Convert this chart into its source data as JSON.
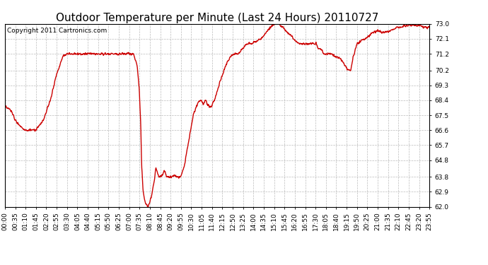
{
  "title": "Outdoor Temperature per Minute (Last 24 Hours) 20110727",
  "copyright_text": "Copyright 2011 Cartronics.com",
  "line_color": "#cc0000",
  "bg_color": "#ffffff",
  "plot_bg_color": "#ffffff",
  "grid_color": "#bbbbbb",
  "ylim": [
    62.0,
    73.0
  ],
  "yticks": [
    62.0,
    62.9,
    63.8,
    64.8,
    65.7,
    66.6,
    67.5,
    68.4,
    69.3,
    70.2,
    71.2,
    72.1,
    73.0
  ],
  "x_labels": [
    "00:00",
    "00:35",
    "01:10",
    "01:45",
    "02:20",
    "02:55",
    "03:30",
    "04:05",
    "04:40",
    "05:15",
    "05:50",
    "06:25",
    "07:00",
    "07:35",
    "08:10",
    "08:45",
    "09:20",
    "09:55",
    "10:30",
    "11:05",
    "11:40",
    "12:15",
    "12:50",
    "13:25",
    "14:00",
    "14:35",
    "15:10",
    "15:45",
    "16:20",
    "16:55",
    "17:30",
    "18:05",
    "18:40",
    "19:15",
    "19:50",
    "20:25",
    "21:00",
    "21:35",
    "22:10",
    "22:45",
    "23:20",
    "23:55"
  ],
  "title_fontsize": 11,
  "copyright_fontsize": 6.5,
  "tick_fontsize": 6.5,
  "line_width": 1.0,
  "keypoints": [
    [
      0,
      68.0
    ],
    [
      20,
      67.8
    ],
    [
      35,
      67.2
    ],
    [
      55,
      66.8
    ],
    [
      70,
      66.6
    ],
    [
      85,
      66.6
    ],
    [
      105,
      66.6
    ],
    [
      130,
      67.2
    ],
    [
      155,
      68.5
    ],
    [
      175,
      70.0
    ],
    [
      195,
      71.0
    ],
    [
      210,
      71.2
    ],
    [
      230,
      71.2
    ],
    [
      260,
      71.2
    ],
    [
      300,
      71.2
    ],
    [
      340,
      71.2
    ],
    [
      380,
      71.2
    ],
    [
      410,
      71.2
    ],
    [
      435,
      71.2
    ],
    [
      448,
      70.5
    ],
    [
      455,
      69.0
    ],
    [
      460,
      67.0
    ],
    [
      463,
      64.5
    ],
    [
      468,
      63.0
    ],
    [
      475,
      62.2
    ],
    [
      485,
      62.0
    ],
    [
      495,
      62.5
    ],
    [
      505,
      63.5
    ],
    [
      512,
      64.4
    ],
    [
      518,
      63.9
    ],
    [
      525,
      63.8
    ],
    [
      533,
      63.9
    ],
    [
      540,
      64.2
    ],
    [
      548,
      63.8
    ],
    [
      558,
      63.8
    ],
    [
      565,
      63.8
    ],
    [
      575,
      63.9
    ],
    [
      585,
      63.8
    ],
    [
      595,
      63.8
    ],
    [
      608,
      64.5
    ],
    [
      618,
      65.5
    ],
    [
      628,
      66.5
    ],
    [
      638,
      67.5
    ],
    [
      648,
      68.0
    ],
    [
      658,
      68.4
    ],
    [
      665,
      68.4
    ],
    [
      673,
      68.2
    ],
    [
      680,
      68.4
    ],
    [
      688,
      68.1
    ],
    [
      698,
      68.0
    ],
    [
      710,
      68.4
    ],
    [
      728,
      69.5
    ],
    [
      748,
      70.5
    ],
    [
      763,
      71.0
    ],
    [
      775,
      71.2
    ],
    [
      790,
      71.2
    ],
    [
      805,
      71.5
    ],
    [
      820,
      71.8
    ],
    [
      838,
      71.8
    ],
    [
      852,
      72.0
    ],
    [
      868,
      72.1
    ],
    [
      885,
      72.5
    ],
    [
      900,
      72.8
    ],
    [
      912,
      73.0
    ],
    [
      920,
      73.2
    ],
    [
      928,
      73.0
    ],
    [
      940,
      72.8
    ],
    [
      955,
      72.5
    ],
    [
      968,
      72.3
    ],
    [
      978,
      72.1
    ],
    [
      988,
      71.9
    ],
    [
      1000,
      71.8
    ],
    [
      1012,
      71.8
    ],
    [
      1020,
      71.8
    ],
    [
      1030,
      71.8
    ],
    [
      1042,
      71.8
    ],
    [
      1055,
      71.8
    ],
    [
      1062,
      71.5
    ],
    [
      1072,
      71.5
    ],
    [
      1080,
      71.2
    ],
    [
      1092,
      71.2
    ],
    [
      1105,
      71.2
    ],
    [
      1118,
      71.0
    ],
    [
      1130,
      71.0
    ],
    [
      1142,
      70.8
    ],
    [
      1152,
      70.5
    ],
    [
      1162,
      70.2
    ],
    [
      1172,
      70.2
    ],
    [
      1180,
      71.0
    ],
    [
      1193,
      71.8
    ],
    [
      1208,
      72.0
    ],
    [
      1222,
      72.1
    ],
    [
      1235,
      72.3
    ],
    [
      1248,
      72.5
    ],
    [
      1262,
      72.6
    ],
    [
      1275,
      72.5
    ],
    [
      1290,
      72.5
    ],
    [
      1305,
      72.6
    ],
    [
      1318,
      72.7
    ],
    [
      1330,
      72.8
    ],
    [
      1345,
      72.8
    ],
    [
      1360,
      72.9
    ],
    [
      1375,
      72.9
    ],
    [
      1390,
      72.9
    ],
    [
      1410,
      72.9
    ],
    [
      1425,
      72.8
    ],
    [
      1439,
      72.8
    ]
  ]
}
